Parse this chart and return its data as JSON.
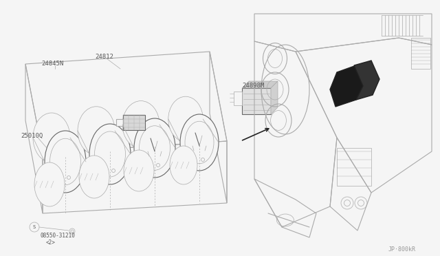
{
  "bg_color": "#f5f5f5",
  "line_color": "#aaaaaa",
  "dark_line": "#666666",
  "black": "#222222",
  "label_24845N": "24845N",
  "label_24812": "24812",
  "label_25010Q": "25010Q",
  "label_24898M": "24898M",
  "label_bolt": "08550-31210",
  "label_bolt2": "<2>",
  "label_jp": "JP·800kR",
  "text_color": "#555555",
  "font_size": 6.5,
  "lw_main": 0.8,
  "lw_thin": 0.5
}
